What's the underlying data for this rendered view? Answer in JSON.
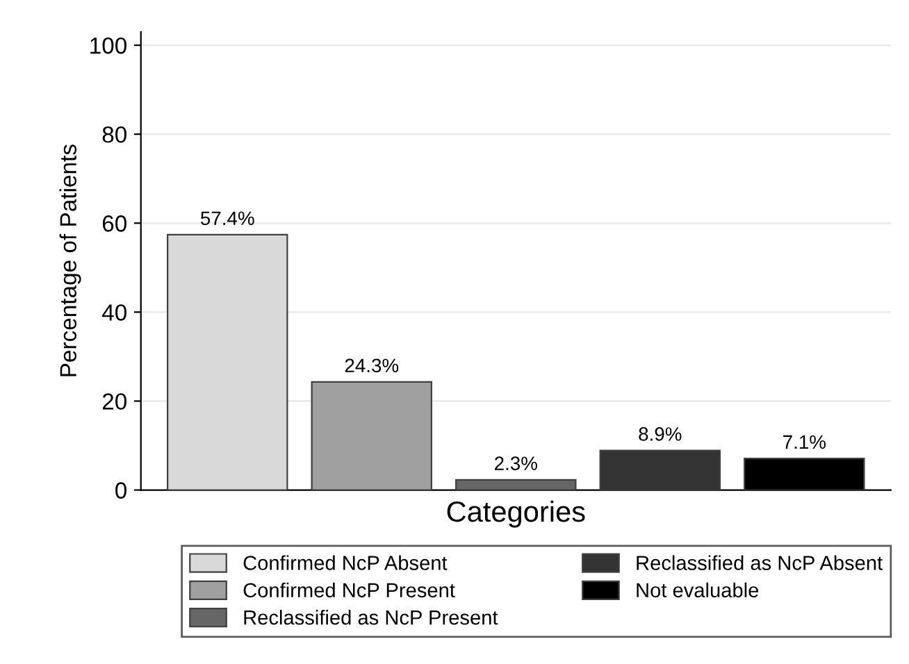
{
  "chart_data": {
    "type": "bar",
    "xlabel": "Categories",
    "ylabel": "Percentage of Patients",
    "categories": [
      null
    ],
    "series": [
      {
        "name": "Confirmed NcP Absent",
        "color": "#d9d9d9",
        "values": [
          57.4
        ],
        "value_labels": [
          "57.4%"
        ]
      },
      {
        "name": "Confirmed NcP Present",
        "color": "#a0a0a0",
        "values": [
          24.3
        ],
        "value_labels": [
          "24.3%"
        ]
      },
      {
        "name": "Reclassified as NcP Present",
        "color": "#666666",
        "values": [
          2.3
        ],
        "value_labels": [
          "2.3%"
        ]
      },
      {
        "name": "Reclassified as NcP Absent",
        "color": "#333333",
        "values": [
          8.9
        ],
        "value_labels": [
          "8.9%"
        ]
      },
      {
        "name": "Not evaluable",
        "color": "#000000",
        "values": [
          7.1
        ],
        "value_labels": [
          "7.1%"
        ]
      }
    ],
    "ylim": [
      0,
      103
    ],
    "yticks": [
      0,
      20,
      40,
      60,
      80,
      100
    ],
    "grid": "y",
    "legend": "bottom"
  }
}
